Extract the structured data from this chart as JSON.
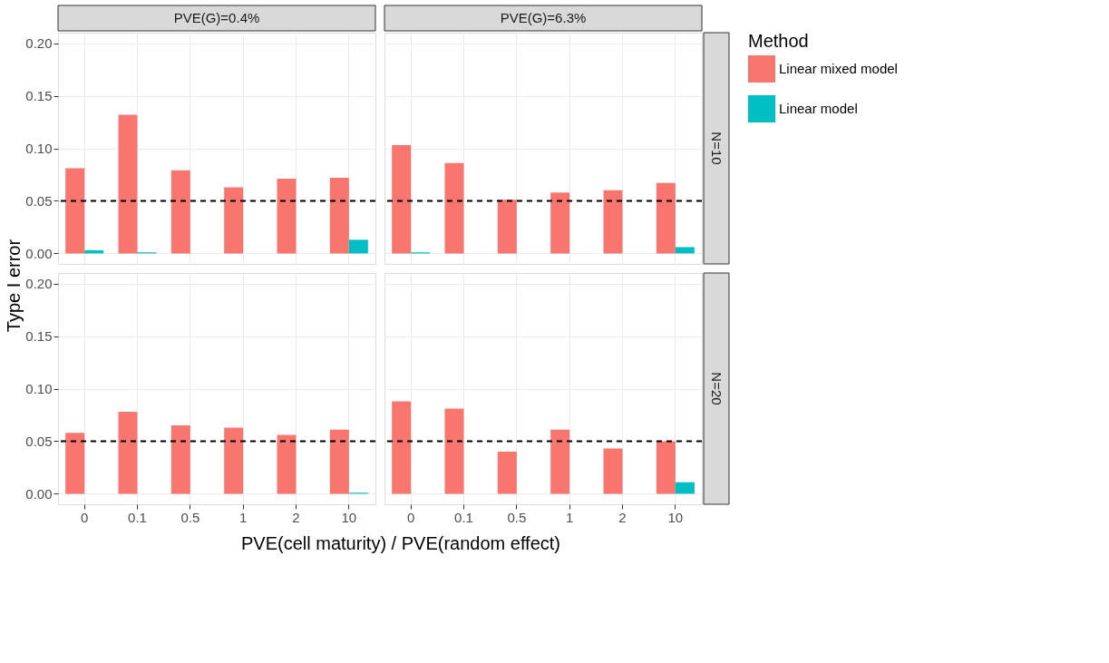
{
  "chart_data": [
    {
      "type": "bar",
      "title": "PVE(G)=0.4%",
      "ylabel": "Type I error",
      "legend_title": "Method",
      "legend": "right",
      "categories": [
        "0",
        "0.1",
        "0.5",
        "1",
        "2",
        "10"
      ],
      "series": [
        {
          "name": "Linear mixed model",
          "color": "#f8766d",
          "values": [
            0.081,
            0.132,
            0.079,
            0.063,
            0.071,
            0.072
          ]
        },
        {
          "name": "Linear model",
          "color": "#00bfc4",
          "values": [
            0.003,
            0.001,
            0,
            0,
            0,
            0.013
          ]
        }
      ],
      "ylim": [
        -0.01,
        0.21
      ],
      "yticks": [
        {
          "value": 0,
          "label": "0.00"
        },
        {
          "value": 0.05,
          "label": "0.05"
        },
        {
          "value": 0.1,
          "label": "0.10"
        },
        {
          "value": 0.15,
          "label": "0.15"
        },
        {
          "value": 0.2,
          "label": "0.20"
        }
      ],
      "ref_lines": [
        {
          "axis": "y",
          "value": 0.05,
          "color": "#000000",
          "line_style": "dashed"
        }
      ],
      "grid": true,
      "tick_labels": "y"
    },
    {
      "type": "bar",
      "title": "PVE(G)=6.3%",
      "y2label": "N=10",
      "categories": [
        "0",
        "0.1",
        "0.5",
        "1",
        "2",
        "10"
      ],
      "series": [
        {
          "color": "#f8766d",
          "values": [
            0.103,
            0.086,
            0.051,
            0.058,
            0.06,
            0.067
          ]
        },
        {
          "color": "#00bfc4",
          "values": [
            0.001,
            0,
            0,
            0,
            0,
            0.006
          ]
        }
      ],
      "ylim": [
        -0.01,
        0.21
      ],
      "yticks": [
        0,
        0.05,
        0.1,
        0.15,
        0.2
      ],
      "ref_lines": [
        {
          "axis": "y",
          "value": 0.05,
          "color": "#000000",
          "line_style": "dashed"
        }
      ],
      "grid": true,
      "tick_labels": false
    },
    {
      "type": "bar",
      "xlabel": "PVE(cell maturity) / PVE(random effect)",
      "categories": [
        "0",
        "0.1",
        "0.5",
        "1",
        "2",
        "10"
      ],
      "series": [
        {
          "color": "#f8766d",
          "values": [
            0.058,
            0.078,
            0.065,
            0.063,
            0.056,
            0.061
          ]
        },
        {
          "color": "#00bfc4",
          "values": [
            0,
            0,
            0,
            0,
            0,
            0.001
          ]
        }
      ],
      "ylim": [
        -0.01,
        0.21
      ],
      "yticks": [
        {
          "value": 0,
          "label": "0.00"
        },
        {
          "value": 0.05,
          "label": "0.05"
        },
        {
          "value": 0.1,
          "label": "0.10"
        },
        {
          "value": 0.15,
          "label": "0.15"
        },
        {
          "value": 0.2,
          "label": "0.20"
        }
      ],
      "ref_lines": [
        {
          "axis": "y",
          "value": 0.05,
          "color": "#000000",
          "line_style": "dashed"
        }
      ],
      "grid": true
    },
    {
      "type": "bar",
      "y2label": "N=20",
      "categories": [
        "0",
        "0.1",
        "0.5",
        "1",
        "2",
        "10"
      ],
      "series": [
        {
          "color": "#f8766d",
          "values": [
            0.088,
            0.081,
            0.04,
            0.061,
            0.043,
            0.05
          ]
        },
        {
          "color": "#00bfc4",
          "values": [
            0,
            0,
            0,
            0,
            0,
            0.011
          ]
        }
      ],
      "ylim": [
        -0.01,
        0.21
      ],
      "yticks": [
        0,
        0.05,
        0.1,
        0.15,
        0.2
      ],
      "ref_lines": [
        {
          "axis": "y",
          "value": 0.05,
          "color": "#000000",
          "line_style": "dashed"
        }
      ],
      "grid": true,
      "tick_labels": "x"
    }
  ]
}
